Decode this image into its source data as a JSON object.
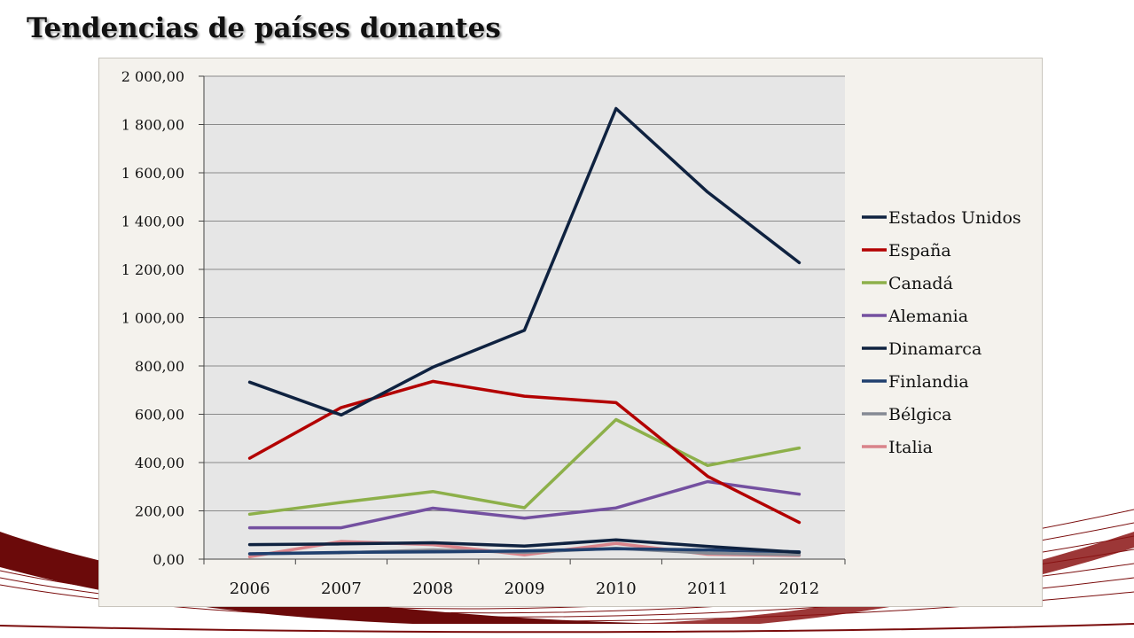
{
  "slide": {
    "title": "Tendencias de países donantes"
  },
  "chart_data": {
    "type": "line",
    "title": "",
    "xlabel": "",
    "ylabel": "",
    "categories": [
      "2006",
      "2007",
      "2008",
      "2009",
      "2010",
      "2011",
      "2012"
    ],
    "ylim": [
      0,
      2000
    ],
    "y_ticks": [
      0,
      200,
      400,
      600,
      800,
      1000,
      1200,
      1400,
      1600,
      1800,
      2000
    ],
    "y_tick_labels": [
      "0,00",
      "200,00",
      "400,00",
      "600,00",
      "800,00",
      "1 000,00",
      "1 200,00",
      "1 400,00",
      "1 600,00",
      "1 800,00",
      "2 000,00"
    ],
    "grid": true,
    "plot_background": "#e6e6e6",
    "legend_position": "right",
    "series": [
      {
        "name": "Estados Unidos",
        "color": "#0f2240",
        "values": [
          733,
          597,
          795,
          948,
          1866,
          1520,
          1228
        ]
      },
      {
        "name": "España",
        "color": "#b30000",
        "values": [
          418,
          628,
          736,
          675,
          648,
          343,
          152
        ]
      },
      {
        "name": "Canadá",
        "color": "#8db04a",
        "values": [
          186,
          235,
          280,
          213,
          578,
          388,
          460
        ]
      },
      {
        "name": "Alemania",
        "color": "#7450a0",
        "values": [
          130,
          130,
          211,
          170,
          212,
          321,
          269
        ]
      },
      {
        "name": "Dinamarca",
        "color": "#0f2240",
        "values": [
          60,
          63,
          68,
          54,
          80,
          53,
          28
        ]
      },
      {
        "name": "Finlandia",
        "color": "#1f3f6e",
        "values": [
          22,
          28,
          30,
          34,
          43,
          38,
          30
        ]
      },
      {
        "name": "Bélgica",
        "color": "#858a94",
        "values": [
          22,
          26,
          38,
          28,
          45,
          25,
          18
        ]
      },
      {
        "name": "Italia",
        "color": "#d9838a",
        "values": [
          10,
          73,
          60,
          18,
          65,
          20,
          15
        ]
      }
    ]
  }
}
